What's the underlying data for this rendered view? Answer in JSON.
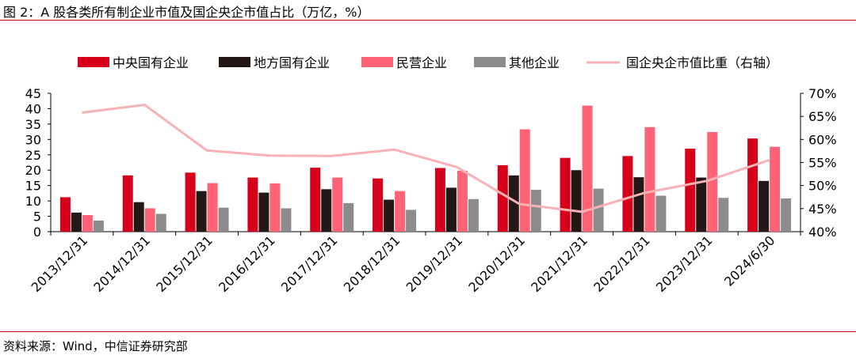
{
  "header": {
    "title": "图 2：A 股各类所有制企业市值及国企央企市值占比（万亿，%）"
  },
  "footer": {
    "source": "资料来源：Wind，中信证券研究部"
  },
  "colors": {
    "central_soe": "#d7001b",
    "local_soe": "#231815",
    "private": "#ff6375",
    "other": "#8c8c8c",
    "share_line": "#f7b2b6",
    "rule": "#c00000"
  },
  "chart_data": {
    "type": "bar",
    "categories": [
      "2013/12/31",
      "2014/12/31",
      "2015/12/31",
      "2016/12/31",
      "2017/12/31",
      "2018/12/31",
      "2019/12/31",
      "2020/12/31",
      "2021/12/31",
      "2022/12/31",
      "2023/12/31",
      "2024/6/30"
    ],
    "series": [
      {
        "name": "中央国有企业",
        "type": "bar",
        "axis": "left",
        "color": "#d7001b",
        "values": [
          11.2,
          18.3,
          19.2,
          17.6,
          20.8,
          17.3,
          20.7,
          21.6,
          24.0,
          24.6,
          27.0,
          30.3
        ]
      },
      {
        "name": "地方国有企业",
        "type": "bar",
        "axis": "left",
        "color": "#231815",
        "values": [
          6.2,
          9.6,
          13.2,
          12.7,
          13.8,
          10.4,
          14.3,
          18.3,
          20.0,
          17.7,
          17.6,
          16.5
        ]
      },
      {
        "name": "民营企业",
        "type": "bar",
        "axis": "left",
        "color": "#ff6375",
        "values": [
          5.4,
          7.6,
          15.8,
          15.7,
          17.6,
          13.2,
          19.8,
          33.3,
          41.0,
          34.0,
          32.4,
          27.6
        ]
      },
      {
        "name": "其他企业",
        "type": "bar",
        "axis": "left",
        "color": "#8c8c8c",
        "values": [
          3.6,
          5.8,
          7.8,
          7.6,
          9.3,
          7.1,
          10.6,
          13.6,
          14.0,
          11.7,
          11.0,
          10.8
        ]
      },
      {
        "name": "国企央企市值比重（右轴）",
        "type": "line",
        "axis": "right",
        "color": "#f7b2b6",
        "values": [
          65.8,
          67.5,
          57.6,
          56.5,
          56.4,
          57.8,
          54.0,
          46.0,
          44.3,
          48.4,
          51.0,
          55.5
        ]
      }
    ],
    "yleft": {
      "min": 0,
      "max": 45,
      "step": 5,
      "ticks": [
        "0",
        "5",
        "10",
        "15",
        "20",
        "25",
        "30",
        "35",
        "40",
        "45"
      ]
    },
    "yright": {
      "min": 40,
      "max": 70,
      "step": 5,
      "ticks": [
        "40%",
        "45%",
        "50%",
        "55%",
        "60%",
        "65%",
        "70%"
      ]
    },
    "legend": "top",
    "grid": false
  }
}
